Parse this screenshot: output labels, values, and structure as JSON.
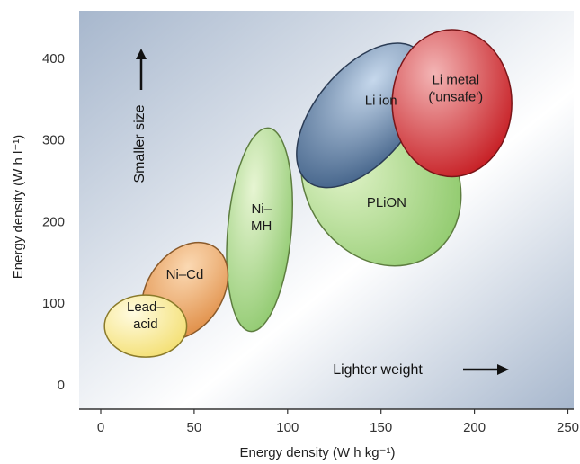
{
  "chart_data": {
    "type": "scatter",
    "title": "",
    "xlabel": "Energy density (W h kg⁻¹)",
    "ylabel": "Energy density (W h l⁻¹)",
    "xlim": [
      -10,
      255
    ],
    "ylim": [
      -20,
      440
    ],
    "xticks": [
      0,
      50,
      100,
      150,
      200,
      250
    ],
    "yticks": [
      0,
      100,
      200,
      300,
      400
    ],
    "grid": false,
    "background": {
      "from": "#a7b7cd",
      "mid": "#ffffff",
      "to": "#a7b7cd"
    },
    "regions": [
      {
        "lines": [
          "PLiON"
        ],
        "cx": 150,
        "cy": 250,
        "rx": 40,
        "ry": 110,
        "angle": -35,
        "fill_light": "#e3f4cb",
        "fill_dark": "#8ec96b",
        "stroke": "#5d7d3f",
        "text_color": "#1a1a1a",
        "label_x": 153,
        "label_y": 218
      },
      {
        "lines": [
          "Li ion"
        ],
        "cx": 140,
        "cy": 330,
        "rx": 25,
        "ry": 105,
        "angle": 40,
        "fill_light": "#c6d8ec",
        "fill_dark": "#3f5f86",
        "stroke": "#2b3c55",
        "text_color": "#ffffff",
        "label_x": 150,
        "label_y": 343
      },
      {
        "lines": [
          "Li metal",
          "('unsafe')"
        ],
        "cx": 188,
        "cy": 345,
        "rx": 32,
        "ry": 90,
        "angle": 0,
        "fill_light": "#f3b5b5",
        "fill_dark": "#c4161c",
        "stroke": "#7a1518",
        "text_color": "#1a1a1a",
        "label_x": 190,
        "label_y": 358
      },
      {
        "lines": [
          "Ni–",
          "MH"
        ],
        "cx": 85,
        "cy": 190,
        "rx": 17,
        "ry": 125,
        "angle": 5,
        "fill_light": "#e7f5d3",
        "fill_dark": "#8dc86c",
        "stroke": "#5d7d3f",
        "text_color": "#1a1a1a",
        "label_x": 86,
        "label_y": 200
      },
      {
        "lines": [
          "Ni–Cd"
        ],
        "cx": 45,
        "cy": 115,
        "rx": 20,
        "ry": 65,
        "angle": 35,
        "fill_light": "#fbd9b3",
        "fill_dark": "#df8b42",
        "stroke": "#8a5a2a",
        "text_color": "#1a1a1a",
        "label_x": 45,
        "label_y": 130
      },
      {
        "lines": [
          "Lead–",
          "acid"
        ],
        "cx": 24,
        "cy": 72,
        "rx": 22,
        "ry": 38,
        "angle": 0,
        "fill_light": "#fffbe0",
        "fill_dark": "#f3de6e",
        "stroke": "#8a7a2a",
        "text_color": "#1a1a1a",
        "label_x": 24,
        "label_y": 80
      }
    ],
    "annotations": [
      {
        "text": "Smaller size",
        "direction": "up"
      },
      {
        "text": "Lighter weight",
        "direction": "right"
      }
    ]
  }
}
